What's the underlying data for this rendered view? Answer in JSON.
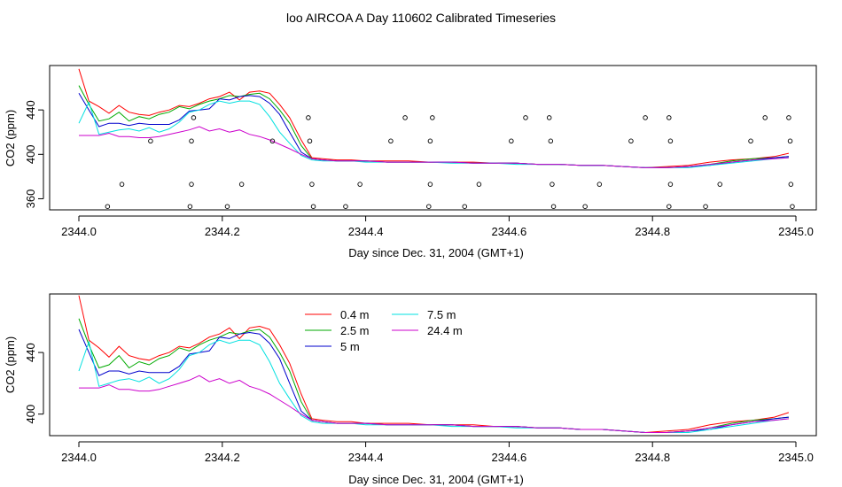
{
  "title": "loo AIRCOA A  Day 110602  Calibrated Timeseries",
  "chart_data": [
    {
      "type": "line",
      "xlabel": "Day since Dec. 31, 2004 (GMT+1)",
      "ylabel": "CO2 (ppm)",
      "xlim": [
        2343.99,
        2345.01
      ],
      "ylim": [
        350,
        480
      ],
      "xticks": [
        2344.0,
        2344.2,
        2344.4,
        2344.6,
        2344.8,
        2345.0
      ],
      "xtick_labels": [
        "2344.0",
        "2344.2",
        "2344.4",
        "2344.6",
        "2344.8",
        "2345.0"
      ],
      "yticks": [
        360,
        400,
        440
      ],
      "ytick_labels": [
        "360",
        "400",
        "440"
      ],
      "x": [
        2344.0,
        2344.014,
        2344.028,
        2344.042,
        2344.056,
        2344.07,
        2344.084,
        2344.098,
        2344.112,
        2344.126,
        2344.14,
        2344.154,
        2344.168,
        2344.182,
        2344.196,
        2344.21,
        2344.224,
        2344.238,
        2344.252,
        2344.266,
        2344.28,
        2344.294,
        2344.31,
        2344.325,
        2344.34,
        2344.36,
        2344.38,
        2344.4,
        2344.43,
        2344.46,
        2344.49,
        2344.52,
        2344.55,
        2344.58,
        2344.61,
        2344.64,
        2344.67,
        2344.7,
        2344.73,
        2344.76,
        2344.79,
        2344.82,
        2344.85,
        2344.88,
        2344.91,
        2344.94,
        2344.97,
        2344.99
      ],
      "series": [
        {
          "name": "0.4 m",
          "color": "#ff0000",
          "values": [
            477,
            448,
            443,
            437,
            444,
            438,
            436,
            435,
            438,
            440,
            444,
            443,
            446,
            450,
            452,
            456,
            449,
            456,
            457,
            455,
            445,
            433,
            413,
            397,
            396,
            395,
            395,
            394,
            394,
            394,
            393,
            393,
            393,
            392,
            392,
            391,
            391,
            390,
            390,
            389,
            388,
            389,
            390,
            393,
            395,
            396,
            398,
            401
          ]
        },
        {
          "name": "2.5 m",
          "color": "#00aa00",
          "values": [
            462,
            445,
            430,
            432,
            438,
            430,
            434,
            432,
            436,
            438,
            443,
            441,
            445,
            448,
            450,
            453,
            452,
            454,
            455,
            450,
            440,
            428,
            408,
            396,
            395,
            394,
            394,
            394,
            393,
            393,
            393,
            393,
            392,
            392,
            392,
            391,
            391,
            390,
            390,
            389,
            388,
            388,
            389,
            391,
            394,
            396,
            397,
            398
          ]
        },
        {
          "name": "5 m",
          "color": "#0000cc",
          "values": [
            455,
            440,
            425,
            428,
            428,
            426,
            428,
            427,
            427,
            427,
            431,
            439,
            440,
            441,
            450,
            449,
            452,
            453,
            452,
            446,
            436,
            420,
            402,
            396,
            395,
            394,
            394,
            394,
            393,
            393,
            393,
            393,
            392,
            392,
            392,
            391,
            391,
            390,
            390,
            389,
            388,
            388,
            389,
            390,
            393,
            395,
            397,
            398
          ]
        },
        {
          "name": "7.5 m",
          "color": "#00e0e0",
          "values": [
            428,
            447,
            418,
            420,
            422,
            423,
            421,
            424,
            420,
            423,
            429,
            438,
            440,
            445,
            448,
            446,
            448,
            448,
            445,
            434,
            420,
            410,
            399,
            395,
            394,
            394,
            394,
            393,
            393,
            393,
            393,
            392,
            392,
            392,
            391,
            391,
            391,
            390,
            390,
            389,
            388,
            388,
            388,
            390,
            392,
            394,
            396,
            397
          ]
        },
        {
          "name": "24.4 m",
          "color": "#cc00cc",
          "values": [
            417,
            417,
            417,
            419,
            416,
            416,
            415,
            415,
            416,
            418,
            420,
            422,
            425,
            421,
            423,
            420,
            422,
            418,
            416,
            413,
            409,
            405,
            400,
            396,
            395,
            394,
            394,
            394,
            393,
            393,
            393,
            393,
            392,
            392,
            392,
            391,
            391,
            390,
            390,
            389,
            388,
            388,
            389,
            391,
            393,
            395,
            396,
            397
          ]
        }
      ],
      "markers": {
        "type": "scatter",
        "symbol": "circle",
        "points": [
          [
            2344.04,
            353
          ],
          [
            2344.06,
            373
          ],
          [
            2344.1,
            412
          ],
          [
            2344.155,
            353
          ],
          [
            2344.157,
            373
          ],
          [
            2344.157,
            412
          ],
          [
            2344.16,
            433
          ],
          [
            2344.207,
            353
          ],
          [
            2344.227,
            373
          ],
          [
            2344.27,
            412
          ],
          [
            2344.32,
            433
          ],
          [
            2344.322,
            412
          ],
          [
            2344.325,
            373
          ],
          [
            2344.327,
            353
          ],
          [
            2344.372,
            353
          ],
          [
            2344.392,
            373
          ],
          [
            2344.435,
            412
          ],
          [
            2344.455,
            433
          ],
          [
            2344.488,
            353
          ],
          [
            2344.49,
            373
          ],
          [
            2344.49,
            412
          ],
          [
            2344.493,
            433
          ],
          [
            2344.538,
            353
          ],
          [
            2344.558,
            373
          ],
          [
            2344.603,
            412
          ],
          [
            2344.623,
            433
          ],
          [
            2344.656,
            433
          ],
          [
            2344.658,
            412
          ],
          [
            2344.66,
            373
          ],
          [
            2344.662,
            353
          ],
          [
            2344.706,
            353
          ],
          [
            2344.726,
            373
          ],
          [
            2344.77,
            412
          ],
          [
            2344.79,
            433
          ],
          [
            2344.823,
            433
          ],
          [
            2344.825,
            412
          ],
          [
            2344.825,
            373
          ],
          [
            2344.823,
            353
          ],
          [
            2344.874,
            353
          ],
          [
            2344.894,
            373
          ],
          [
            2344.937,
            412
          ],
          [
            2344.957,
            433
          ],
          [
            2344.99,
            433
          ],
          [
            2344.992,
            412
          ],
          [
            2344.993,
            373
          ],
          [
            2344.995,
            353
          ]
        ]
      }
    },
    {
      "type": "line",
      "xlabel": "Day since Dec. 31, 2004 (GMT+1)",
      "ylabel": "CO2 (ppm)",
      "xlim": [
        2343.99,
        2345.01
      ],
      "ylim": [
        386,
        478
      ],
      "xticks": [
        2344.0,
        2344.2,
        2344.4,
        2344.6,
        2344.8,
        2345.0
      ],
      "xtick_labels": [
        "2344.0",
        "2344.2",
        "2344.4",
        "2344.6",
        "2344.8",
        "2345.0"
      ],
      "yticks": [
        400,
        440
      ],
      "ytick_labels": [
        "400",
        "440"
      ],
      "legend": {
        "position": "top-center",
        "columns": 2
      },
      "x": [
        2344.0,
        2344.014,
        2344.028,
        2344.042,
        2344.056,
        2344.07,
        2344.084,
        2344.098,
        2344.112,
        2344.126,
        2344.14,
        2344.154,
        2344.168,
        2344.182,
        2344.196,
        2344.21,
        2344.224,
        2344.238,
        2344.252,
        2344.266,
        2344.28,
        2344.294,
        2344.31,
        2344.325,
        2344.34,
        2344.36,
        2344.38,
        2344.4,
        2344.43,
        2344.46,
        2344.49,
        2344.52,
        2344.55,
        2344.58,
        2344.61,
        2344.64,
        2344.67,
        2344.7,
        2344.73,
        2344.76,
        2344.79,
        2344.82,
        2344.85,
        2344.88,
        2344.91,
        2344.94,
        2344.97,
        2344.99
      ],
      "series": [
        {
          "name": "0.4 m",
          "color": "#ff0000",
          "values": [
            477,
            448,
            443,
            437,
            444,
            438,
            436,
            435,
            438,
            440,
            444,
            443,
            446,
            450,
            452,
            456,
            449,
            456,
            457,
            455,
            445,
            433,
            413,
            397,
            396,
            395,
            395,
            394,
            394,
            394,
            393,
            393,
            393,
            392,
            392,
            391,
            391,
            390,
            390,
            389,
            388,
            389,
            390,
            393,
            395,
            396,
            398,
            401
          ]
        },
        {
          "name": "2.5 m",
          "color": "#00aa00",
          "values": [
            462,
            445,
            430,
            432,
            438,
            430,
            434,
            432,
            436,
            438,
            443,
            441,
            445,
            448,
            450,
            453,
            452,
            454,
            455,
            450,
            440,
            428,
            408,
            396,
            395,
            394,
            394,
            394,
            393,
            393,
            393,
            393,
            392,
            392,
            392,
            391,
            391,
            390,
            390,
            389,
            388,
            388,
            389,
            391,
            394,
            396,
            397,
            398
          ]
        },
        {
          "name": "5 m",
          "color": "#0000cc",
          "values": [
            455,
            440,
            425,
            428,
            428,
            426,
            428,
            427,
            427,
            427,
            431,
            439,
            440,
            441,
            450,
            449,
            452,
            453,
            452,
            446,
            436,
            420,
            402,
            396,
            395,
            394,
            394,
            394,
            393,
            393,
            393,
            393,
            392,
            392,
            392,
            391,
            391,
            390,
            390,
            389,
            388,
            388,
            389,
            390,
            393,
            395,
            397,
            398
          ]
        },
        {
          "name": "7.5 m",
          "color": "#00e0e0",
          "values": [
            428,
            447,
            418,
            420,
            422,
            423,
            421,
            424,
            420,
            423,
            429,
            438,
            440,
            445,
            448,
            446,
            448,
            448,
            445,
            434,
            420,
            410,
            399,
            395,
            394,
            394,
            394,
            393,
            393,
            393,
            393,
            392,
            392,
            392,
            391,
            391,
            391,
            390,
            390,
            389,
            388,
            388,
            388,
            390,
            392,
            394,
            396,
            397
          ]
        },
        {
          "name": "24.4 m",
          "color": "#cc00cc",
          "values": [
            417,
            417,
            417,
            419,
            416,
            416,
            415,
            415,
            416,
            418,
            420,
            422,
            425,
            421,
            423,
            420,
            422,
            418,
            416,
            413,
            409,
            405,
            400,
            396,
            395,
            394,
            394,
            394,
            393,
            393,
            393,
            393,
            392,
            392,
            392,
            391,
            391,
            390,
            390,
            389,
            388,
            388,
            389,
            391,
            393,
            395,
            396,
            397
          ]
        }
      ]
    }
  ]
}
